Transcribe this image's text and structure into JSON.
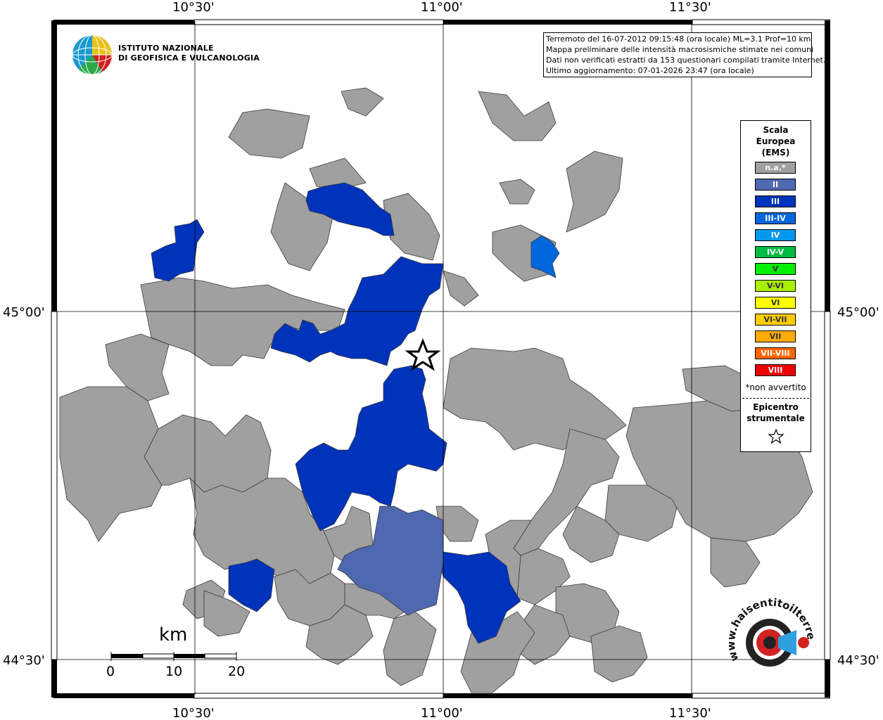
{
  "coords": {
    "lon_labels": [
      "10°30'",
      "11°00'",
      "11°30'"
    ],
    "lat_labels": [
      "45°00'",
      "44°30'"
    ]
  },
  "institute": {
    "line1": "ISTITUTO NAZIONALE",
    "line2": "DI GEOFISICA E VULCANOLOGIA",
    "logo_icon": "ingv-globe-icon"
  },
  "info": {
    "line1": "Terremoto del 16-07-2012 09:15:48 (ora locale) ML=3.1 Prof=10 km",
    "line2": "Mappa preliminare delle intensità macrosismiche stimate nei comuni",
    "line3": "Dati non verificati estratti da 153 questionari compilati tramite Internet.",
    "line4": "Ultimo aggiornamento: 07-01-2026 23:47 (ora locale)"
  },
  "legend": {
    "title1": "Scala",
    "title2": "Europea",
    "title3": "(EMS)",
    "items": [
      {
        "label": "n.a.*",
        "color": "#a0a0a0"
      },
      {
        "label": "II",
        "color": "#4f68b0"
      },
      {
        "label": "III",
        "color": "#0033bb"
      },
      {
        "label": "III-IV",
        "color": "#0066dd"
      },
      {
        "label": "IV",
        "color": "#0099ee"
      },
      {
        "label": "IV-V",
        "color": "#00bb44"
      },
      {
        "label": "V",
        "color": "#00ee00"
      },
      {
        "label": "V-VI",
        "color": "#aaee00"
      },
      {
        "label": "VI",
        "color": "#ffff00"
      },
      {
        "label": "VI-VII",
        "color": "#ffcc00"
      },
      {
        "label": "VII",
        "color": "#ffaa00"
      },
      {
        "label": "VII-VIII",
        "color": "#ff6600"
      },
      {
        "label": "VIII",
        "color": "#ee0000"
      }
    ],
    "note": "*non avvertito",
    "epi1": "Epicentro",
    "epi2": "strumentale",
    "star_icon": "star-icon"
  },
  "scale": {
    "unit": "km",
    "ticks": [
      "0",
      "10",
      "20"
    ]
  },
  "colors": {
    "na": "#a0a0a0",
    "ii": "#4f68b0",
    "iii": "#0033bb",
    "iiiiv": "#0066dd",
    "border": "#3a3a3a"
  },
  "watermark": {
    "text": "www.haisentitoilterremoto.it",
    "icon": "seismometer-logo-icon"
  }
}
